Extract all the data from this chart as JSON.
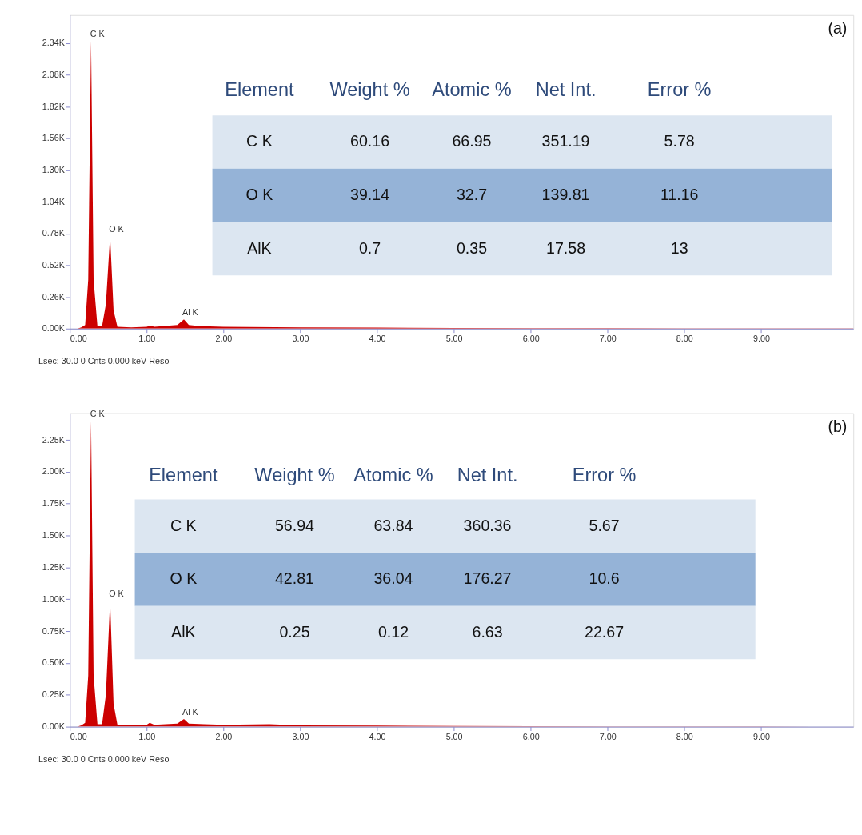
{
  "chart_data": [
    {
      "type": "area",
      "title": "(a)",
      "x": [
        0,
        0.1,
        0.15,
        0.2,
        0.24,
        0.277,
        0.31,
        0.36,
        0.42,
        0.47,
        0.525,
        0.57,
        0.62,
        0.8,
        1.0,
        1.05,
        1.1,
        1.4,
        1.486,
        1.55,
        1.7,
        2.0,
        3.0,
        4.0,
        5.0,
        6.0,
        7.0,
        8.0,
        9.0,
        10.2
      ],
      "series": [
        {
          "color": "#cc0000",
          "values": [
            0,
            0,
            10,
            30,
            400,
            2360,
            400,
            20,
            20,
            200,
            760,
            150,
            15,
            10,
            15,
            25,
            15,
            30,
            75,
            30,
            20,
            15,
            10,
            8,
            5,
            4,
            3,
            2,
            2,
            1
          ]
        }
      ],
      "xlim": [
        0,
        10.2
      ],
      "ylim": [
        0,
        2570
      ],
      "xticks": [
        {
          "value": 0,
          "label": "0.00"
        },
        {
          "value": 1,
          "label": "1.00"
        },
        {
          "value": 2,
          "label": "2.00"
        },
        {
          "value": 3,
          "label": "3.00"
        },
        {
          "value": 4,
          "label": "4.00"
        },
        {
          "value": 5,
          "label": "5.00"
        },
        {
          "value": 6,
          "label": "6.00"
        },
        {
          "value": 7,
          "label": "7.00"
        },
        {
          "value": 8,
          "label": "8.00"
        },
        {
          "value": 9,
          "label": "9.00"
        }
      ],
      "yticks": [
        {
          "value": 0,
          "label": "0.00K"
        },
        {
          "value": 260,
          "label": "0.26K"
        },
        {
          "value": 520,
          "label": "0.52K"
        },
        {
          "value": 780,
          "label": "0.78K"
        },
        {
          "value": 1040,
          "label": "1.04K"
        },
        {
          "value": 1300,
          "label": "1.30K"
        },
        {
          "value": 1560,
          "label": "1.56K"
        },
        {
          "value": 1820,
          "label": "1.82K"
        },
        {
          "value": 2080,
          "label": "2.08K"
        },
        {
          "value": 2340,
          "label": "2.34K"
        }
      ],
      "annotations": [
        {
          "text": "C K",
          "x": 0.277,
          "y": 2360
        },
        {
          "text": "O K",
          "x": 0.525,
          "y": 760
        },
        {
          "text": "Al K",
          "x": 1.486,
          "y": 75
        },
        "Element",
        "Weight %",
        "Atomic %",
        "Net Int.",
        "Error %",
        "C K",
        "60.16",
        "66.95",
        "351.19",
        "5.78",
        "O K",
        "39.14",
        "32.7",
        "139.81",
        "11.16",
        "AlK",
        "0.7",
        "0.35",
        "17.58",
        "13",
        "Lsec: 30.0 0 Cnts  0.000 keV          Reso"
      ]
    },
    {
      "type": "area",
      "title": "(b)",
      "x": [
        0,
        0.1,
        0.15,
        0.2,
        0.24,
        0.277,
        0.31,
        0.36,
        0.42,
        0.47,
        0.525,
        0.57,
        0.62,
        0.8,
        1.0,
        1.04,
        1.1,
        1.4,
        1.486,
        1.55,
        1.75,
        2.0,
        2.6,
        3.0,
        4.0,
        5.0,
        6.0,
        7.0,
        8.0,
        9.0,
        10.2
      ],
      "series": [
        {
          "color": "#cc0000",
          "values": [
            0,
            0,
            10,
            30,
            400,
            2400,
            400,
            20,
            20,
            250,
            990,
            180,
            15,
            10,
            15,
            30,
            15,
            25,
            60,
            25,
            20,
            15,
            20,
            10,
            8,
            5,
            4,
            3,
            2,
            2,
            1
          ]
        }
      ],
      "xlim": [
        0,
        10.2
      ],
      "ylim": [
        0,
        2460
      ],
      "xticks": [
        {
          "value": 0,
          "label": "0.00"
        },
        {
          "value": 1,
          "label": "1.00"
        },
        {
          "value": 2,
          "label": "2.00"
        },
        {
          "value": 3,
          "label": "3.00"
        },
        {
          "value": 4,
          "label": "4.00"
        },
        {
          "value": 5,
          "label": "5.00"
        },
        {
          "value": 6,
          "label": "6.00"
        },
        {
          "value": 7,
          "label": "7.00"
        },
        {
          "value": 8,
          "label": "8.00"
        },
        {
          "value": 9,
          "label": "9.00"
        }
      ],
      "yticks": [
        {
          "value": 0,
          "label": "0.00K"
        },
        {
          "value": 250,
          "label": "0.25K"
        },
        {
          "value": 500,
          "label": "0.50K"
        },
        {
          "value": 750,
          "label": "0.75K"
        },
        {
          "value": 1000,
          "label": "1.00K"
        },
        {
          "value": 1250,
          "label": "1.25K"
        },
        {
          "value": 1500,
          "label": "1.50K"
        },
        {
          "value": 1750,
          "label": "1.75K"
        },
        {
          "value": 2000,
          "label": "2.00K"
        },
        {
          "value": 2250,
          "label": "2.25K"
        }
      ],
      "annotations": [
        {
          "text": "C K",
          "x": 0.277,
          "y": 2400
        },
        {
          "text": "O K",
          "x": 0.525,
          "y": 990
        },
        {
          "text": "Al K",
          "x": 1.486,
          "y": 60
        },
        "Element",
        "Weight %",
        "Atomic %",
        "Net Int.",
        "Error %",
        "C K",
        "56.94",
        "63.84",
        "360.36",
        "5.67",
        "O K",
        "42.81",
        "36.04",
        "176.27",
        "10.6",
        "AlK",
        "0.25",
        "0.12",
        "6.63",
        "22.67",
        "Lsec: 30.0 0 Cnts  0.000 keV          Reso"
      ]
    }
  ]
}
